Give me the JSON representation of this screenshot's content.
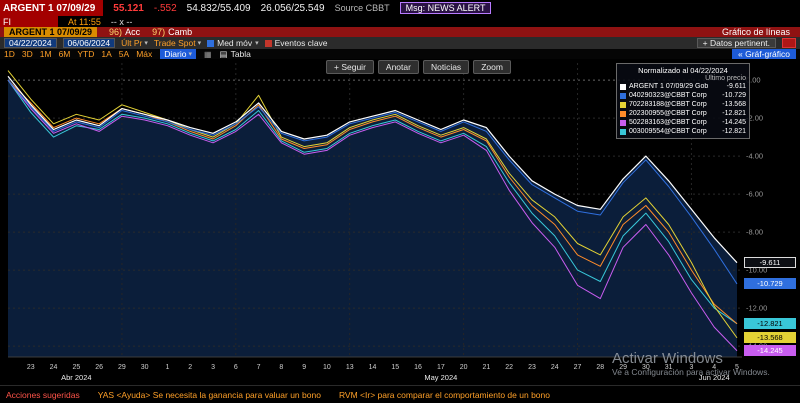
{
  "header": {
    "security": "ARGENT 1 07/09/29",
    "price": "55.121",
    "change": "-.552",
    "bid_ask": "54.832/55.409",
    "yield_pair": "26.056/25.549",
    "source": "Source CBBT",
    "msg_badge": "Msg: NEWS ALERT",
    "asset_tag": "FI",
    "time": "At 11:55",
    "size": "-- x --"
  },
  "menubar": {
    "security": "ARGENT 1 07/09/29",
    "item1_num": "96)",
    "item1_label": "Acc",
    "item2_num": "97)",
    "item2_label": "Camb",
    "right_label": "Gráfico de líneas"
  },
  "toolbar": {
    "date_from": "04/22/2024",
    "date_to": "06/06/2024",
    "price_field": "Últ Pr",
    "market_field": "Trade Spot",
    "mov_avg": "Med móv",
    "key_events": "Eventos clave",
    "datos_button": "+ Datos pertinent.",
    "graf_button": "« Gráf-gráfico"
  },
  "tabsbar": {
    "periods": [
      "1D",
      "3D",
      "1M",
      "6M",
      "YTD",
      "1A",
      "5A",
      "Máx"
    ],
    "frequency": "Diario",
    "table_label": "Tabla"
  },
  "chart_toolbar": {
    "buttons": [
      "+ Seguir",
      "Anotar",
      "Noticias",
      "Zoom"
    ]
  },
  "legend": {
    "title": "Normalizado al 04/22/2024",
    "subtitle": "Último precio",
    "entries": [
      {
        "label": "ARGENT 1 07/09/29 Gob",
        "value": "-9.611",
        "color": "#ffffff"
      },
      {
        "label": "040290323@CBBT Corp",
        "value": "-10.729",
        "color": "#2f6fde"
      },
      {
        "label": "702283188@CBBT Corp",
        "value": "-13.568",
        "color": "#e3d235"
      },
      {
        "label": "202300955@CBBT Corp",
        "value": "-12.821",
        "color": "#ff8c2a"
      },
      {
        "label": "502283163@CBBT Corp",
        "value": "-14.245",
        "color": "#c95df0"
      },
      {
        "label": "003009554@CBBT Corp",
        "value": "-12.821",
        "color": "#39c7d8"
      }
    ]
  },
  "chart_data": {
    "type": "line",
    "title": "Normalizado al 04/22/2024",
    "xlabel": "",
    "ylabel": "",
    "ylim": [
      0.9,
      -14.8
    ],
    "y_gridlines": [
      0,
      -2,
      -4,
      -6,
      -8,
      -10,
      -12,
      -14
    ],
    "x_grid_indices": [
      5,
      10,
      15,
      20,
      25,
      30
    ],
    "area_fill": "#0b1e3a",
    "tick_labels": [
      "",
      "23",
      "24",
      "25",
      "26",
      "29",
      "30",
      "1",
      "2",
      "3",
      "6",
      "7",
      "8",
      "9",
      "10",
      "13",
      "14",
      "15",
      "16",
      "17",
      "20",
      "21",
      "22",
      "23",
      "24",
      "27",
      "28",
      "29",
      "30",
      "31",
      "3",
      "4",
      "5"
    ],
    "months": [
      {
        "i": 3,
        "label": "Abr 2024"
      },
      {
        "i": 19,
        "label": "May 2024"
      },
      {
        "i": 31,
        "label": "Jun 2024"
      }
    ],
    "series": [
      {
        "name": "ARGENT 1 07/09/29 Gob",
        "color": "#ffffff",
        "last": "-9.611",
        "values": [
          0.2,
          -1.3,
          -2.6,
          -2.1,
          -2.4,
          -1.5,
          -1.8,
          -2.1,
          -2.5,
          -2.8,
          -2.2,
          -1.2,
          -2.7,
          -3.1,
          -2.9,
          -2.2,
          -1.9,
          -1.6,
          -2.1,
          -2.6,
          -2.1,
          -2.5,
          -4.0,
          -5.3,
          -6.0,
          -6.6,
          -6.8,
          -5.2,
          -4.0,
          -5.3,
          -6.8,
          -8.3,
          -9.611
        ]
      },
      {
        "name": "040290323@CBBT Corp",
        "color": "#2f6fde",
        "last": "-10.729",
        "values": [
          0.0,
          -1.4,
          -2.7,
          -2.2,
          -2.5,
          -1.6,
          -1.9,
          -2.2,
          -2.6,
          -2.9,
          -2.3,
          -1.4,
          -2.8,
          -3.2,
          -3.0,
          -2.3,
          -2.0,
          -1.7,
          -2.2,
          -2.7,
          -2.2,
          -2.7,
          -4.2,
          -5.5,
          -6.2,
          -6.9,
          -7.1,
          -5.4,
          -4.2,
          -5.6,
          -7.2,
          -8.9,
          -10.729
        ]
      },
      {
        "name": "702283188@CBBT Corp",
        "color": "#e3d235",
        "last": "-13.568",
        "values": [
          0.5,
          -1.0,
          -2.3,
          -1.8,
          -2.1,
          -1.3,
          -1.7,
          -2.1,
          -2.6,
          -3.0,
          -2.3,
          -0.8,
          -3.0,
          -3.5,
          -3.3,
          -2.5,
          -2.1,
          -1.8,
          -2.4,
          -2.9,
          -2.5,
          -3.1,
          -4.9,
          -6.3,
          -7.2,
          -8.6,
          -9.2,
          -7.2,
          -6.2,
          -7.6,
          -9.6,
          -11.9,
          -13.568
        ]
      },
      {
        "name": "202300955@CBBT Corp",
        "color": "#ff8c2a",
        "last": "-12.821",
        "values": [
          0.0,
          -1.2,
          -2.5,
          -2.0,
          -2.3,
          -1.5,
          -1.8,
          -2.2,
          -2.7,
          -3.1,
          -2.4,
          -1.3,
          -3.1,
          -3.6,
          -3.4,
          -2.6,
          -2.2,
          -1.9,
          -2.5,
          -3.0,
          -2.6,
          -3.2,
          -5.1,
          -6.6,
          -7.6,
          -9.2,
          -9.8,
          -7.6,
          -6.6,
          -8.0,
          -10.0,
          -11.8,
          -12.821
        ]
      },
      {
        "name": "502283163@CBBT Corp",
        "color": "#c95df0",
        "last": "-14.245",
        "values": [
          0.0,
          -1.5,
          -2.8,
          -2.3,
          -2.7,
          -1.9,
          -2.1,
          -2.4,
          -2.9,
          -3.3,
          -2.7,
          -1.8,
          -3.3,
          -3.9,
          -3.7,
          -2.9,
          -2.5,
          -2.2,
          -2.8,
          -3.3,
          -2.9,
          -3.7,
          -5.8,
          -7.5,
          -8.8,
          -10.8,
          -11.5,
          -8.8,
          -7.6,
          -9.2,
          -11.2,
          -13.0,
          -14.245
        ]
      },
      {
        "name": "003009554@CBBT Corp",
        "color": "#39c7d8",
        "last": "-12.821",
        "values": [
          0.0,
          -1.7,
          -3.0,
          -2.4,
          -2.6,
          -1.8,
          -2.0,
          -2.3,
          -2.8,
          -3.2,
          -2.6,
          -1.6,
          -3.2,
          -3.8,
          -3.6,
          -2.8,
          -2.4,
          -2.1,
          -2.7,
          -3.2,
          -2.8,
          -3.5,
          -5.4,
          -7.0,
          -8.2,
          -10.0,
          -10.6,
          -8.2,
          -7.0,
          -8.5,
          -10.5,
          -12.0,
          -12.821
        ]
      }
    ]
  },
  "statusbar": {
    "left": "Acciones sugeridas",
    "hint1": "YAS <Ayuda> Se necesita la ganancia para valuar un bono",
    "hint2": "RVM <Ir> para comparar el comportamiento de un bono"
  },
  "watermark": {
    "line1": "Activar Windows",
    "line2": "Ve a Configuración para activar Windows."
  }
}
